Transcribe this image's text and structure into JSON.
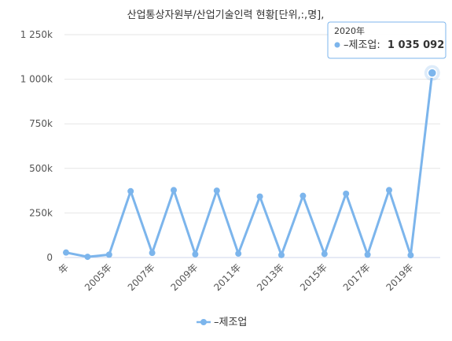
{
  "chart_data": {
    "type": "line",
    "title": "산업통상자원부/산업기술인력 현황[단위,:,명],",
    "x_tick_labels": [
      "年",
      "2005年",
      "2007年",
      "2009年",
      "2011年",
      "2013年",
      "2015年",
      "2017年",
      "2019年"
    ],
    "y_tick_labels": [
      "0",
      "250k",
      "500k",
      "750k",
      "1 000k",
      "1 250k"
    ],
    "ylim": [
      0,
      1250000
    ],
    "series": [
      {
        "name": "–제조업",
        "color": "#7cb5ec",
        "values": [
          28000,
          4000,
          16000,
          372000,
          26000,
          378000,
          18000,
          375000,
          22000,
          342000,
          14000,
          346000,
          20000,
          358000,
          16000,
          378000,
          13000,
          1035092
        ]
      }
    ],
    "tooltip": {
      "header": "2020年",
      "series_label": "–제조업:",
      "value": "1 035 092"
    },
    "legend": {
      "position": "bottom",
      "label": "–제조업"
    }
  }
}
